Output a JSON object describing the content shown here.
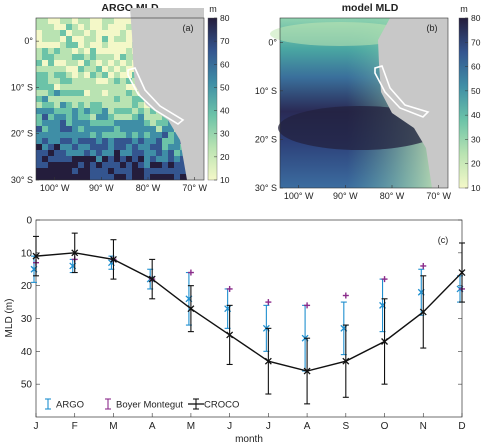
{
  "chart_data": [
    {
      "panel": "(a)",
      "type": "heatmap",
      "title": "ARGO MLD",
      "colorbar": {
        "label": "m",
        "ticks": [
          10,
          20,
          30,
          40,
          50,
          60,
          70,
          80
        ],
        "range": [
          10,
          80
        ]
      },
      "x_ticks": [
        "100º W",
        "90º W",
        "80º W",
        "70º W"
      ],
      "y_ticks": [
        "0º",
        "10º S",
        "20º S",
        "30º S"
      ],
      "x_range": [
        -104,
        -68
      ],
      "y_range": [
        -30,
        5
      ]
    },
    {
      "panel": "(b)",
      "type": "heatmap",
      "title": "model MLD",
      "colorbar": {
        "label": "m",
        "ticks": [
          10,
          20,
          30,
          40,
          50,
          60,
          70,
          80
        ],
        "range": [
          10,
          80
        ]
      },
      "x_ticks": [
        "100º W",
        "90º W",
        "80º W",
        "70º W"
      ],
      "y_ticks": [
        "0º",
        "10º S",
        "20º S",
        "30º S"
      ],
      "x_range": [
        -104,
        -68
      ],
      "y_range": [
        -30,
        5
      ]
    },
    {
      "panel": "(c)",
      "type": "line",
      "xlabel": "month",
      "ylabel": "MLD (m)",
      "categories": [
        "J",
        "F",
        "M",
        "A",
        "M",
        "J",
        "J",
        "A",
        "S",
        "O",
        "N",
        "D"
      ],
      "yticks": [
        0,
        10,
        20,
        30,
        40,
        50
      ],
      "ylim": [
        60,
        0
      ],
      "y_inverted": true,
      "legend": "bottom-left",
      "series": [
        {
          "name": "ARGO",
          "color": "#1f8fcf",
          "values": [
            15,
            14,
            13,
            18,
            24,
            27,
            33,
            36,
            33,
            26,
            22,
            21
          ],
          "err": [
            4,
            2,
            2,
            3,
            8,
            6,
            7,
            10,
            8,
            8,
            7,
            4
          ]
        },
        {
          "name": "Boyer Montegut",
          "color": "#8b2c8b",
          "values": [
            13,
            12,
            12,
            18,
            16,
            21,
            25,
            26,
            23,
            18,
            14,
            21
          ],
          "err": [
            0,
            0,
            0,
            0,
            0,
            0,
            0,
            0,
            0,
            0,
            0,
            0
          ]
        },
        {
          "name": "CROCO",
          "color": "#111111",
          "values": [
            11,
            10,
            12,
            18,
            27,
            35,
            43,
            46,
            43,
            37,
            28,
            16
          ],
          "err": [
            6,
            6,
            6,
            6,
            7,
            9,
            10,
            10,
            11,
            13,
            11,
            9
          ]
        }
      ]
    }
  ]
}
